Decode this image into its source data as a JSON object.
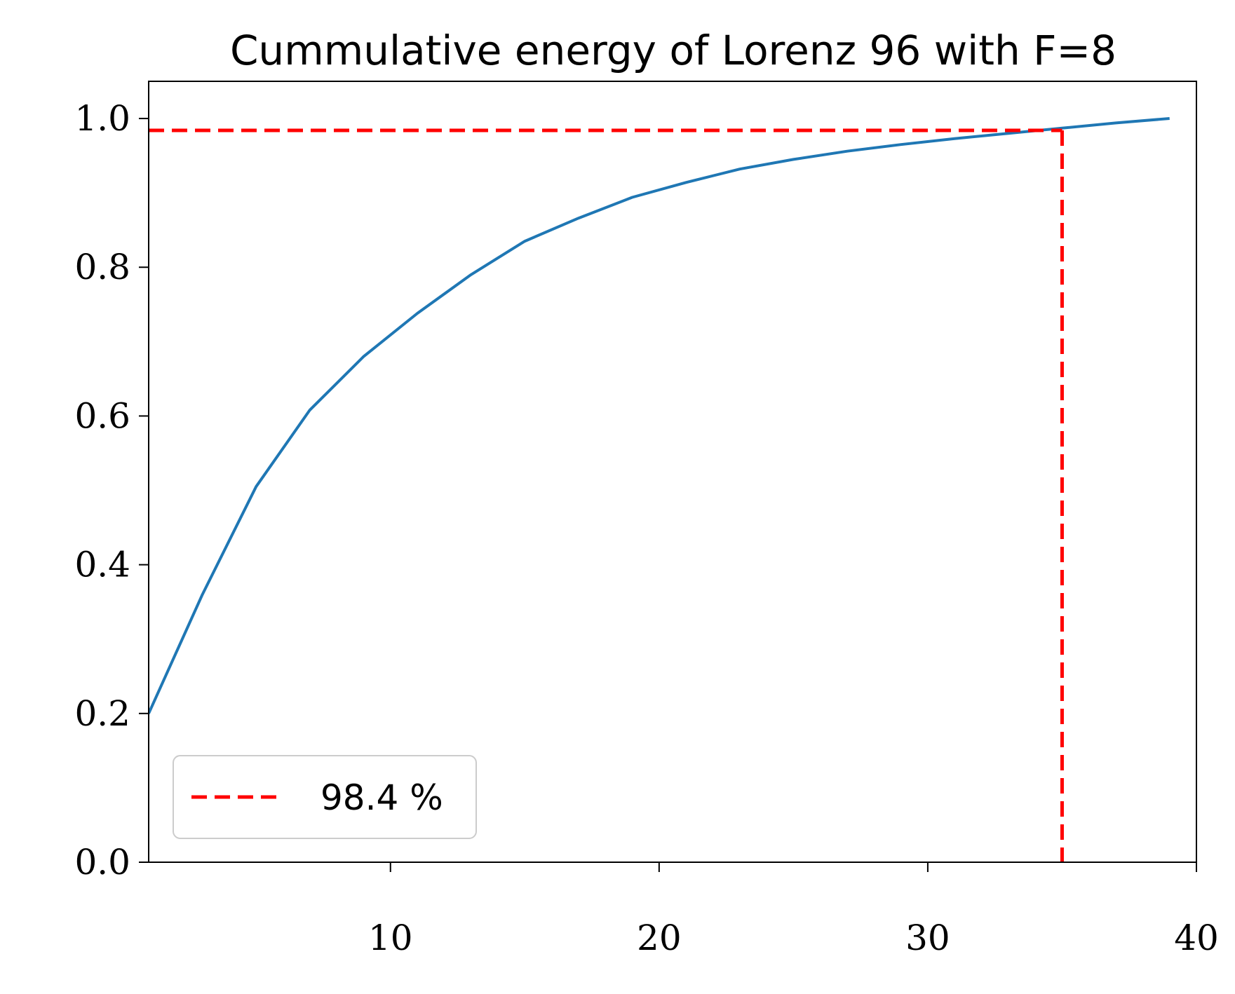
{
  "chart_data": {
    "type": "line",
    "title": "Cummulative energy of Lorenz 96 with F=8",
    "xlabel": "",
    "ylabel": "",
    "xlim": [
      1,
      40
    ],
    "ylim": [
      0,
      1.05
    ],
    "xticks": [
      10,
      20,
      30,
      40
    ],
    "yticks": [
      0.0,
      0.2,
      0.4,
      0.6,
      0.8,
      1.0
    ],
    "xtick_labels": [
      "10",
      "20",
      "30",
      "40"
    ],
    "ytick_labels": [
      "0.0",
      "0.2",
      "0.4",
      "0.6",
      "0.8",
      "1.0"
    ],
    "grid": false,
    "legend_position": "lower-left",
    "series": [
      {
        "color": "#1f77b4",
        "style": "solid",
        "x": [
          1,
          3,
          5,
          7,
          9,
          11,
          13,
          15,
          17,
          19,
          21,
          23,
          25,
          27,
          29,
          31,
          33,
          35,
          37,
          39
        ],
        "values": [
          0.2,
          0.36,
          0.505,
          0.608,
          0.68,
          0.738,
          0.79,
          0.835,
          0.866,
          0.894,
          0.914,
          0.932,
          0.945,
          0.956,
          0.965,
          0.973,
          0.98,
          0.987,
          0.994,
          1.0
        ]
      }
    ],
    "reference_lines": [
      {
        "name": "98.4 %",
        "color": "#ff0000",
        "style": "dashed",
        "y": 0.984,
        "x": 35
      }
    ],
    "legend": [
      {
        "label": "98.4 %",
        "color": "#ff0000",
        "style": "dashed"
      }
    ]
  }
}
